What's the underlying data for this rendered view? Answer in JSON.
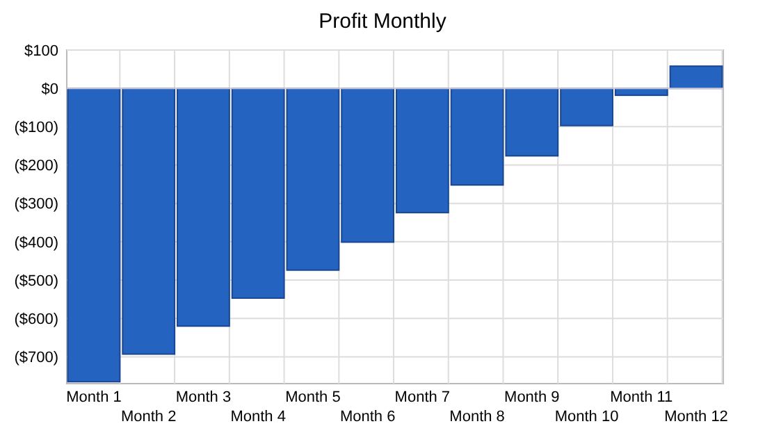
{
  "chart_data": {
    "type": "bar",
    "title": "Profit Monthly",
    "categories": [
      "Month 1",
      "Month 2",
      "Month 3",
      "Month 4",
      "Month 5",
      "Month 6",
      "Month 7",
      "Month 8",
      "Month 9",
      "Month 10",
      "Month 11",
      "Month 12"
    ],
    "values": [
      -765,
      -693,
      -620,
      -547,
      -474,
      -401,
      -324,
      -252,
      -176,
      -97,
      -18,
      58
    ],
    "color": "#2563c0",
    "ylim": [
      -770,
      100
    ],
    "yticks": [
      {
        "value": 100,
        "label": "$100"
      },
      {
        "value": 0,
        "label": "$0"
      },
      {
        "value": -100,
        "label": "($100)"
      },
      {
        "value": -200,
        "label": "($200)"
      },
      {
        "value": -300,
        "label": "($300)"
      },
      {
        "value": -400,
        "label": "($400)"
      },
      {
        "value": -500,
        "label": "($500)"
      },
      {
        "value": -600,
        "label": "($600)"
      },
      {
        "value": -700,
        "label": "($700)"
      }
    ],
    "grid": true
  }
}
